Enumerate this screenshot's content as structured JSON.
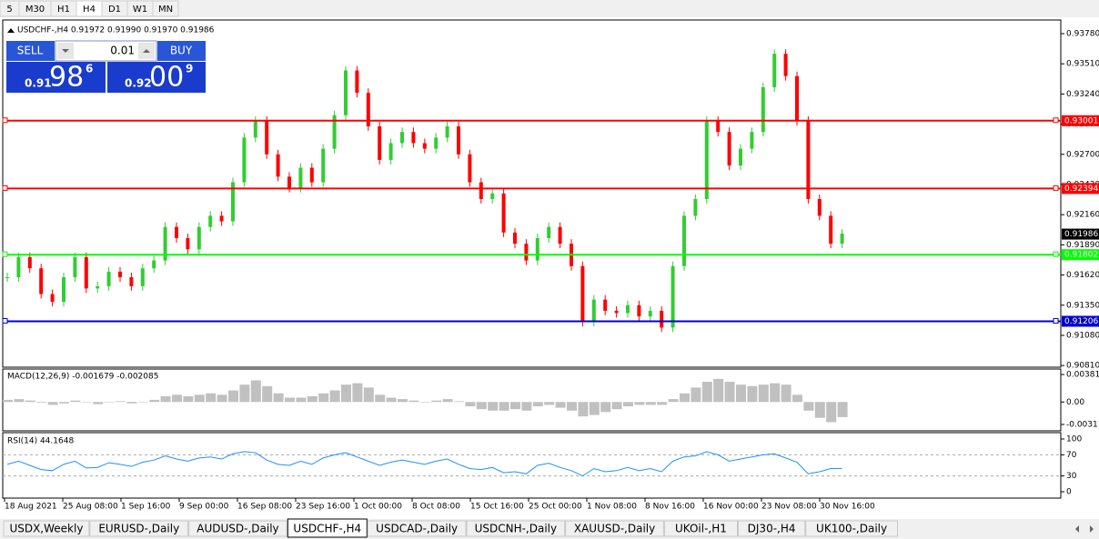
{
  "toolbar": {
    "timeframes": [
      "5",
      "M30",
      "H1",
      "H4",
      "D1",
      "W1",
      "MN"
    ]
  },
  "symbol_header": "USDCHF-,H4  0.91972 0.91990 0.91970 0.91986",
  "trade_panel": {
    "sell": "SELL",
    "lot": "0.01",
    "buy": "BUY",
    "bid_prefix": "0.91",
    "bid_big": "98",
    "bid_sup": "6",
    "ask_prefix": "0.92",
    "ask_big": "00",
    "ask_sup": "9"
  },
  "chart_data": [
    {
      "type": "candlestick",
      "up_color": "#32cd32",
      "down_color": "#ff0000",
      "values": [
        0.916,
        0.9178,
        0.9168,
        0.9145,
        0.9138,
        0.916,
        0.9178,
        0.915,
        0.9152,
        0.9165,
        0.916,
        0.9152,
        0.9168,
        0.9175,
        0.9205,
        0.9195,
        0.9185,
        0.9205,
        0.9215,
        0.921,
        0.9245,
        0.9285,
        0.93,
        0.927,
        0.925,
        0.924,
        0.9258,
        0.9245,
        0.9275,
        0.9305,
        0.9345,
        0.9325,
        0.9295,
        0.9265,
        0.928,
        0.929,
        0.928,
        0.9275,
        0.9285,
        0.9295,
        0.927,
        0.9245,
        0.923,
        0.9235,
        0.92,
        0.919,
        0.9175,
        0.9195,
        0.9205,
        0.919,
        0.917,
        0.912,
        0.914,
        0.913,
        0.9128,
        0.9135,
        0.9125,
        0.913,
        0.9115,
        0.917,
        0.9215,
        0.923,
        0.93,
        0.929,
        0.926,
        0.9275,
        0.929,
        0.933,
        0.936,
        0.934,
        0.93,
        0.923,
        0.9215,
        0.919,
        0.9199
      ],
      "ylim": [
        0.90795,
        0.93902
      ],
      "yticks": [
        {
          "value": 0.9378,
          "label": "0.93780"
        },
        {
          "value": 0.9351,
          "label": "0.93510"
        },
        {
          "value": 0.9324,
          "label": "0.93240"
        },
        {
          "value": 0.9297,
          "label": "0.92970"
        },
        {
          "value": 0.927,
          "label": "0.92700"
        },
        {
          "value": 0.9243,
          "label": "0.92430"
        },
        {
          "value": 0.9216,
          "label": "0.92160"
        },
        {
          "value": 0.9189,
          "label": "0.91890"
        },
        {
          "value": 0.9162,
          "label": "0.91620"
        },
        {
          "value": 0.9135,
          "label": "0.91350"
        },
        {
          "value": 0.9108,
          "label": "0.91080"
        },
        {
          "value": 0.9081,
          "label": "0.90810"
        }
      ],
      "levels": [
        {
          "value": 0.93001,
          "color": "#ff0000"
        },
        {
          "value": 0.92394,
          "color": "#ff0000"
        },
        {
          "value": 0.91802,
          "color": "#00ff00"
        },
        {
          "value": 0.91206,
          "color": "#0000cd"
        }
      ],
      "current": 0.91986
    },
    {
      "type": "histogram",
      "label": "MACD(12,26,9) -0.001679 -0.002085",
      "color": "#c0c0c0",
      "values": [
        0.0003,
        0.0004,
        0.0002,
        -0.0001,
        -0.0004,
        -0.0002,
        0.0002,
        0.0,
        -0.0003,
        0.0,
        0.0001,
        -0.0002,
        0.0,
        0.0003,
        0.0008,
        0.001,
        0.0008,
        0.001,
        0.0012,
        0.001,
        0.0016,
        0.0024,
        0.003,
        0.0022,
        0.0012,
        0.0006,
        0.0006,
        0.0008,
        0.0012,
        0.0016,
        0.0024,
        0.0026,
        0.002,
        0.001,
        0.0006,
        0.0004,
        0.0002,
        0.0,
        0.0002,
        0.0004,
        0.0001,
        -0.0006,
        -0.001,
        -0.0012,
        -0.0012,
        -0.001,
        -0.0012,
        -0.0006,
        -0.0004,
        -0.0008,
        -0.0012,
        -0.002,
        -0.0018,
        -0.0014,
        -0.001,
        -0.0006,
        -0.0004,
        -0.0004,
        -0.0004,
        0.0004,
        0.0012,
        0.002,
        0.0028,
        0.0032,
        0.0028,
        0.0024,
        0.0022,
        0.0024,
        0.0026,
        0.0024,
        0.001,
        -0.0012,
        -0.0022,
        -0.0028,
        -0.0021
      ],
      "ylim": [
        -0.004,
        0.004567
      ],
      "yticks": [
        0.003811,
        {
          "value": 0,
          "label": "0.00"
        },
        -0.003115
      ]
    },
    {
      "type": "line",
      "label": "RSI(14) 44.1648",
      "color": "#1e90ff",
      "values": [
        52,
        58,
        50,
        42,
        40,
        52,
        58,
        45,
        46,
        55,
        52,
        48,
        56,
        60,
        68,
        62,
        58,
        64,
        66,
        62,
        72,
        76,
        74,
        60,
        52,
        50,
        58,
        52,
        64,
        70,
        74,
        66,
        58,
        50,
        56,
        60,
        56,
        52,
        58,
        62,
        52,
        44,
        42,
        46,
        36,
        38,
        34,
        50,
        54,
        46,
        40,
        30,
        44,
        38,
        40,
        46,
        40,
        44,
        38,
        58,
        66,
        68,
        76,
        70,
        58,
        62,
        66,
        70,
        72,
        64,
        56,
        34,
        38,
        44,
        44.1648
      ],
      "ylim": [
        -12,
        112
      ],
      "yticks": [
        100,
        70,
        30,
        0
      ],
      "levels": [
        70,
        30
      ]
    }
  ],
  "x_axis_labels": [
    "18 Aug 2021",
    "25 Aug 08:00",
    "1 Sep 16:00",
    "9 Sep 00:00",
    "16 Sep 08:00",
    "23 Sep 16:00",
    "1 Oct 00:00",
    "8 Oct 08:00",
    "15 Oct 16:00",
    "25 Oct 00:00",
    "1 Nov 08:00",
    "8 Nov 16:00",
    "16 Nov 00:00",
    "23 Nov 08:00",
    "30 Nov 16:00"
  ],
  "tabs": [
    "USDX,Weekly",
    "EURUSD-,Daily",
    "AUDUSD-,Daily",
    "USDCHF-,H4",
    "USDCAD-,Daily",
    "USDCNH-,Daily",
    "XAUUSD-,Daily",
    "UKOil-,H1",
    "DJ30-,H4",
    "UK100-,Daily"
  ],
  "active_tab": 3
}
